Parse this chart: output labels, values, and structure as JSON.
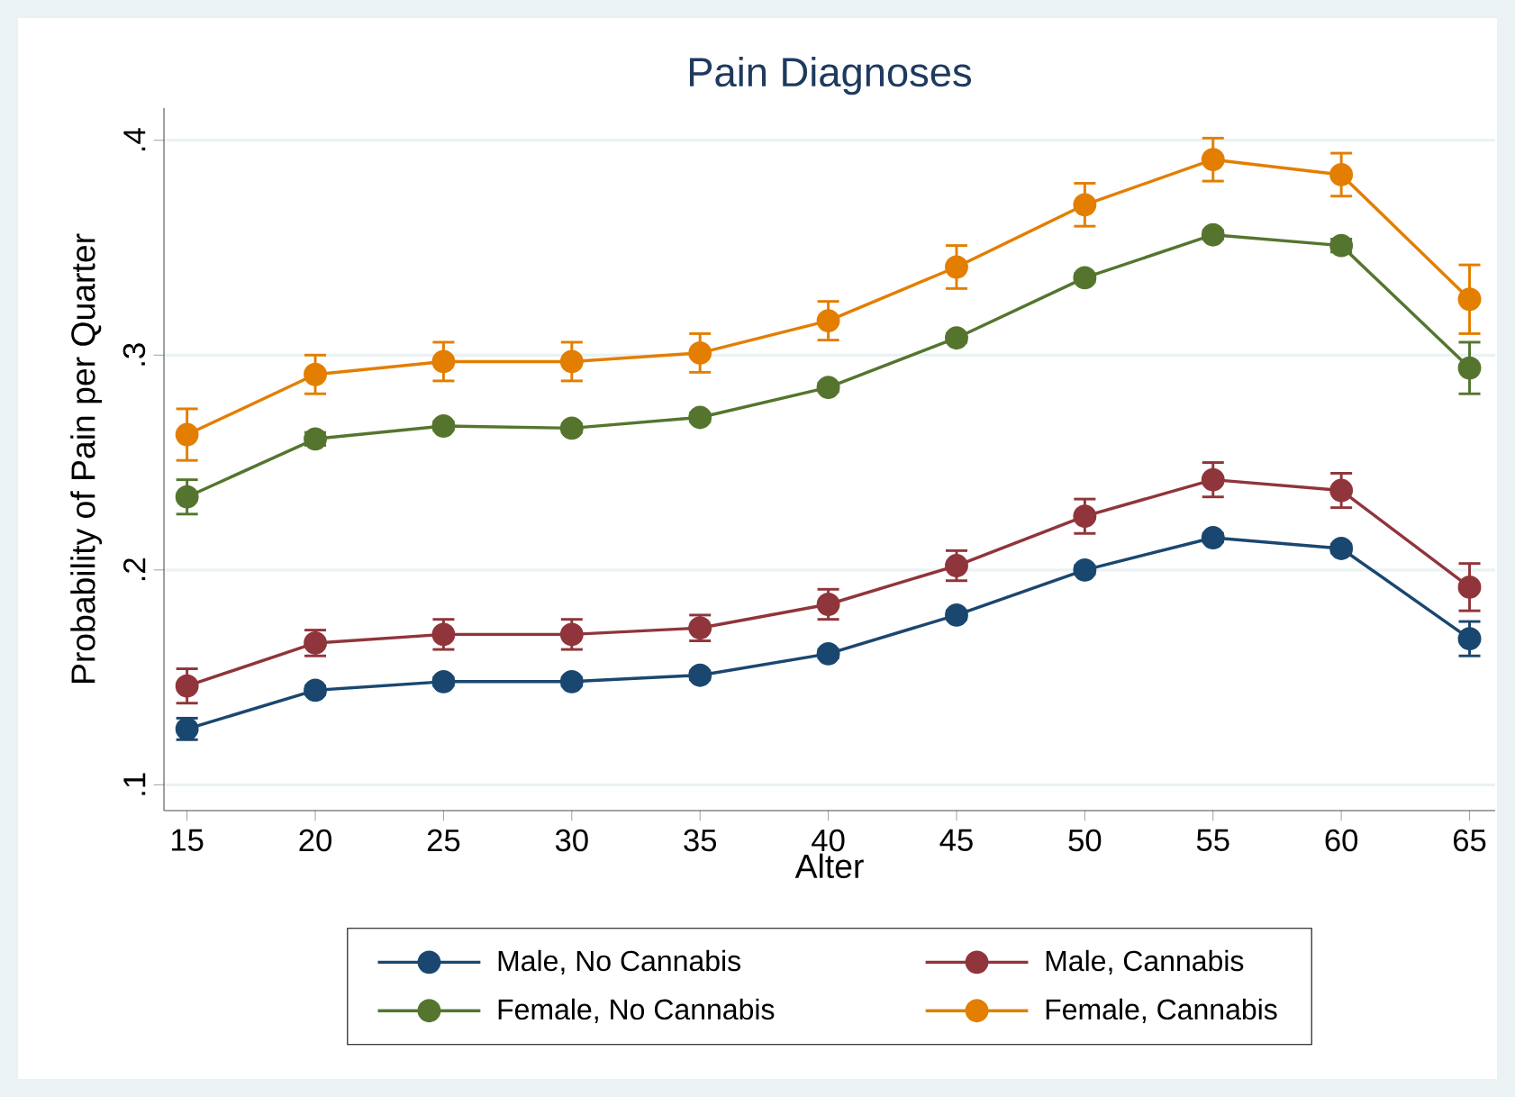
{
  "chart_data": {
    "type": "line",
    "title": "Pain Diagnoses",
    "xlabel": "Alter",
    "ylabel": "Probability of Pain per Quarter",
    "x": [
      15,
      20,
      25,
      30,
      35,
      40,
      45,
      50,
      55,
      60,
      65
    ],
    "xlim": [
      14.1,
      66
    ],
    "xticks": [
      15,
      20,
      25,
      30,
      35,
      40,
      45,
      50,
      55,
      60,
      65
    ],
    "ylim": [
      0.088,
      0.415
    ],
    "yticks": [
      {
        "value": 0.1,
        "label": ".1"
      },
      {
        "value": 0.2,
        "label": ".2"
      },
      {
        "value": 0.3,
        "label": ".3"
      },
      {
        "value": 0.4,
        "label": ".4"
      }
    ],
    "grid": "y",
    "legend": "bottom",
    "marker": "circle",
    "line_style": "solid",
    "series": [
      {
        "name": "Male, No Cannabis",
        "color": "#1a476f",
        "values": [
          0.126,
          0.144,
          0.148,
          0.148,
          0.151,
          0.161,
          0.179,
          0.2,
          0.215,
          0.21,
          0.168
        ],
        "errors": [
          0.005,
          0.002,
          0.002,
          0.002,
          0.002,
          0.002,
          0.002,
          0.002,
          0.002,
          0.002,
          0.008
        ]
      },
      {
        "name": "Male, Cannabis",
        "color": "#90353b",
        "values": [
          0.146,
          0.166,
          0.17,
          0.17,
          0.173,
          0.184,
          0.202,
          0.225,
          0.242,
          0.237,
          0.192
        ],
        "errors": [
          0.008,
          0.006,
          0.007,
          0.007,
          0.006,
          0.007,
          0.007,
          0.008,
          0.008,
          0.008,
          0.011
        ]
      },
      {
        "name": "Female, No Cannabis",
        "color": "#55752f",
        "values": [
          0.234,
          0.261,
          0.267,
          0.266,
          0.271,
          0.285,
          0.308,
          0.336,
          0.356,
          0.351,
          0.294
        ],
        "errors": [
          0.008,
          0.003,
          0.002,
          0.002,
          0.002,
          0.002,
          0.002,
          0.002,
          0.002,
          0.003,
          0.012
        ]
      },
      {
        "name": "Female, Cannabis",
        "color": "#e37e00",
        "values": [
          0.263,
          0.291,
          0.297,
          0.297,
          0.301,
          0.316,
          0.341,
          0.37,
          0.391,
          0.384,
          0.326
        ],
        "errors": [
          0.012,
          0.009,
          0.009,
          0.009,
          0.009,
          0.009,
          0.01,
          0.01,
          0.01,
          0.01,
          0.016
        ]
      }
    ]
  }
}
